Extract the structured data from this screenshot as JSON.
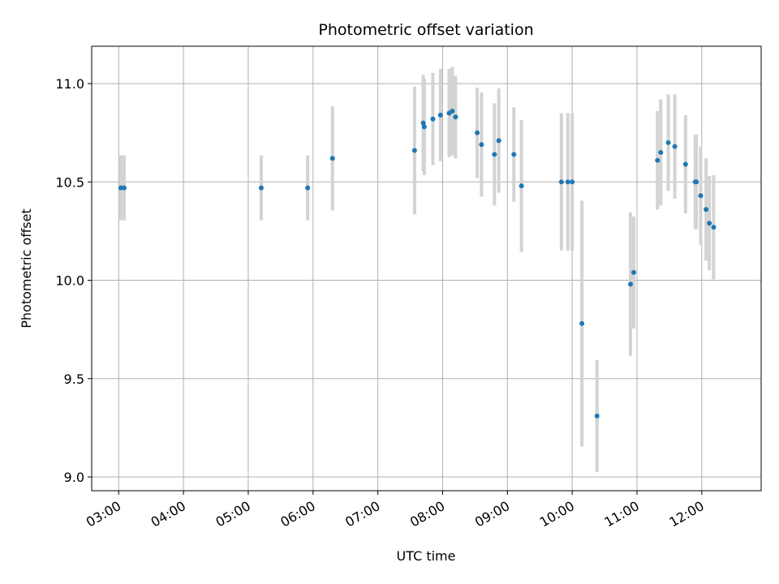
{
  "chart_data": {
    "type": "scatter",
    "title": "Photometric offset variation",
    "xlabel": "UTC time",
    "ylabel": "Photometric offset",
    "grid": true,
    "xlim": [
      "02:35",
      "12:55"
    ],
    "ylim": [
      8.93,
      11.19
    ],
    "x_ticks": [
      "03:00",
      "04:00",
      "05:00",
      "06:00",
      "07:00",
      "08:00",
      "09:00",
      "10:00",
      "11:00",
      "12:00"
    ],
    "y_ticks": [
      "9.0",
      "9.5",
      "10.0",
      "10.5",
      "11.0"
    ],
    "colors": {
      "points": "#1f77b4",
      "error_bars": "#d3d3d3",
      "grid": "#b0b0b0"
    },
    "points": [
      {
        "x": "03:02",
        "y": 10.47,
        "err": 0.165
      },
      {
        "x": "03:05",
        "y": 10.47,
        "err": 0.165
      },
      {
        "x": "05:12",
        "y": 10.47,
        "err": 0.165
      },
      {
        "x": "05:55",
        "y": 10.47,
        "err": 0.165
      },
      {
        "x": "06:18",
        "y": 10.62,
        "err": 0.265
      },
      {
        "x": "07:34",
        "y": 10.66,
        "err": 0.325
      },
      {
        "x": "07:42",
        "y": 10.8,
        "err": 0.245
      },
      {
        "x": "07:43",
        "y": 10.78,
        "err": 0.245
      },
      {
        "x": "07:51",
        "y": 10.82,
        "err": 0.235
      },
      {
        "x": "07:58",
        "y": 10.84,
        "err": 0.235
      },
      {
        "x": "08:06",
        "y": 10.85,
        "err": 0.225
      },
      {
        "x": "08:09",
        "y": 10.86,
        "err": 0.225
      },
      {
        "x": "08:12",
        "y": 10.83,
        "err": 0.21
      },
      {
        "x": "08:32",
        "y": 10.75,
        "err": 0.23
      },
      {
        "x": "08:36",
        "y": 10.69,
        "err": 0.265
      },
      {
        "x": "08:48",
        "y": 10.64,
        "err": 0.26
      },
      {
        "x": "08:52",
        "y": 10.71,
        "err": 0.265
      },
      {
        "x": "09:06",
        "y": 10.64,
        "err": 0.24
      },
      {
        "x": "09:13",
        "y": 10.48,
        "err": 0.335
      },
      {
        "x": "09:50",
        "y": 10.5,
        "err": 0.35
      },
      {
        "x": "09:56",
        "y": 10.5,
        "err": 0.35
      },
      {
        "x": "10:00",
        "y": 10.5,
        "err": 0.35
      },
      {
        "x": "10:09",
        "y": 9.78,
        "err": 0.625
      },
      {
        "x": "10:23",
        "y": 9.31,
        "err": 0.285
      },
      {
        "x": "10:54",
        "y": 9.98,
        "err": 0.365
      },
      {
        "x": "10:57",
        "y": 10.04,
        "err": 0.285
      },
      {
        "x": "11:19",
        "y": 10.61,
        "err": 0.25
      },
      {
        "x": "11:22",
        "y": 10.65,
        "err": 0.27
      },
      {
        "x": "11:29",
        "y": 10.7,
        "err": 0.245
      },
      {
        "x": "11:35",
        "y": 10.68,
        "err": 0.265
      },
      {
        "x": "11:45",
        "y": 10.59,
        "err": 0.25
      },
      {
        "x": "11:54",
        "y": 10.5,
        "err": 0.24
      },
      {
        "x": "11:55",
        "y": 10.5,
        "err": 0.24
      },
      {
        "x": "11:59",
        "y": 10.43,
        "err": 0.25
      },
      {
        "x": "12:04",
        "y": 10.36,
        "err": 0.26
      },
      {
        "x": "12:07",
        "y": 10.29,
        "err": 0.24
      },
      {
        "x": "12:11",
        "y": 10.27,
        "err": 0.265
      }
    ]
  }
}
